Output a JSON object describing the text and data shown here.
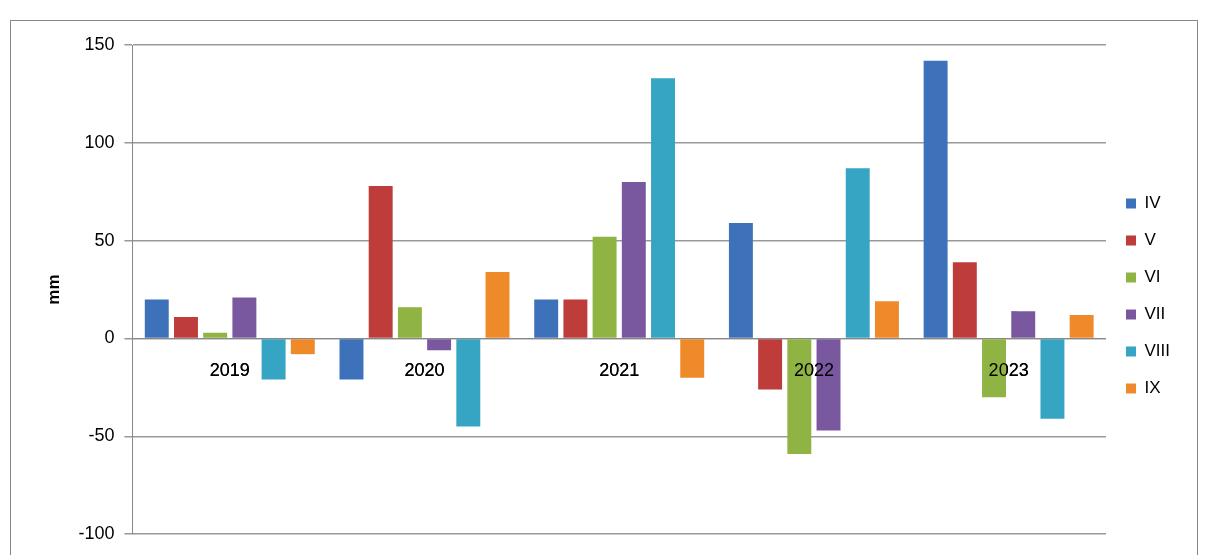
{
  "chart_data": {
    "type": "bar",
    "ylabel": "mm",
    "categories": [
      "2019",
      "2020",
      "2021",
      "2022",
      "2023"
    ],
    "series": [
      {
        "name": "IV",
        "color": "#3d72bb",
        "values": [
          20,
          -21,
          20,
          59,
          142
        ]
      },
      {
        "name": "V",
        "color": "#be3d3a",
        "values": [
          11,
          78,
          20,
          -26,
          39
        ]
      },
      {
        "name": "VI",
        "color": "#8fb444",
        "values": [
          3,
          16,
          52,
          -59,
          -30
        ]
      },
      {
        "name": "VII",
        "color": "#7a58a0",
        "values": [
          21,
          -6,
          80,
          -47,
          14
        ]
      },
      {
        "name": "VIII",
        "color": "#36a5c3",
        "values": [
          -21,
          -45,
          133,
          87,
          -41
        ]
      },
      {
        "name": "IX",
        "color": "#ef8a2a",
        "values": [
          -8,
          34,
          -20,
          19,
          12
        ]
      }
    ],
    "ylim": [
      -100,
      150
    ],
    "yticks": [
      -100,
      -50,
      0,
      50,
      100,
      150
    ],
    "grid": "y",
    "legend": "right"
  }
}
